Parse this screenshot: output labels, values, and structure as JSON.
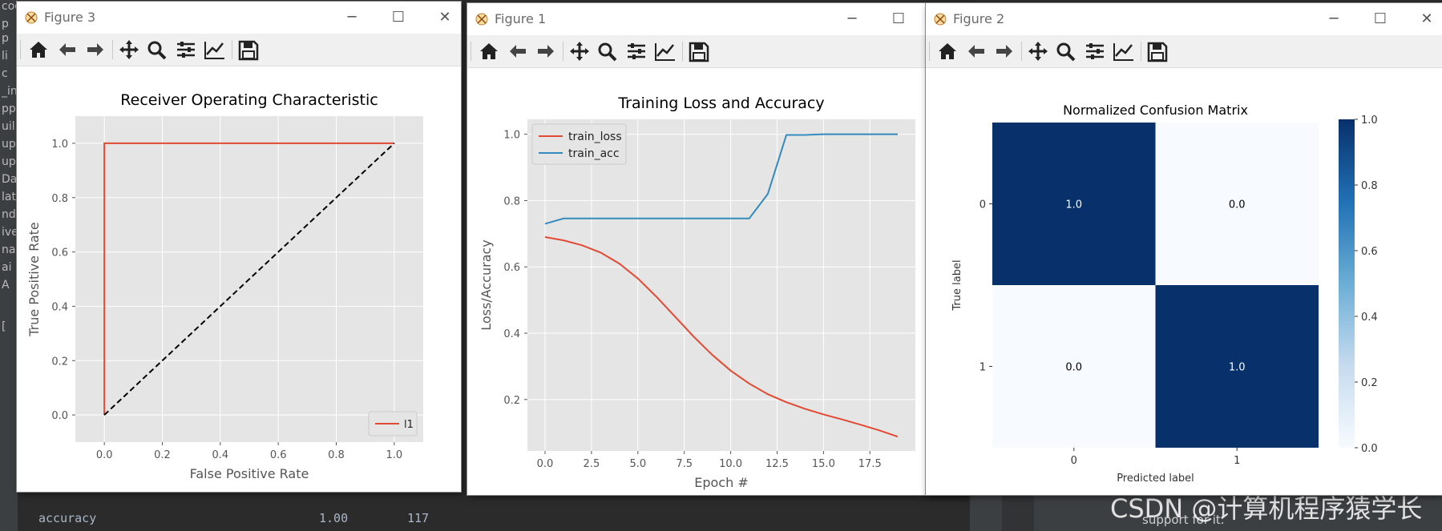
{
  "ide": {
    "left_fragments": [
      "codes",
      "p",
      "p",
      "li",
      "c",
      "_in",
      "pp",
      "uil",
      "up",
      "up",
      "Dat",
      "lata",
      "ndi",
      "ive",
      "nai",
      "ai",
      "A",
      "["
    ],
    "bottom_label": "accuracy",
    "bottom_score": "1.00",
    "bottom_support": "117",
    "support_text": "support for it.",
    "watermark": "CSDN @计算机程序猿学长"
  },
  "windows": {
    "fig3": {
      "title": "Figure 3",
      "controls": {
        "minimize": "─",
        "maximize": "☐",
        "close": "✕"
      },
      "toolbar": [
        "home-icon",
        "back-icon",
        "forward-icon",
        "pan-icon",
        "zoom-icon",
        "configure-subplots-icon",
        "edit-axis-icon",
        "save-icon"
      ]
    },
    "fig1": {
      "title": "Figure 1",
      "controls": {
        "minimize": "─",
        "maximize": "☐"
      },
      "toolbar": [
        "home-icon",
        "back-icon",
        "forward-icon",
        "pan-icon",
        "zoom-icon",
        "configure-subplots-icon",
        "edit-axis-icon",
        "save-icon"
      ]
    },
    "fig2": {
      "title": "Figure 2",
      "controls": {
        "minimize": "─",
        "maximize": "☐",
        "close": "✕"
      },
      "toolbar": [
        "home-icon",
        "back-icon",
        "forward-icon",
        "pan-icon",
        "zoom-icon",
        "configure-subplots-icon",
        "edit-axis-icon",
        "save-icon"
      ]
    }
  },
  "colors": {
    "axes_bg": "#e5e5e5",
    "red": "#e24a33",
    "blue": "#348abd",
    "cm_dark": "#08306b",
    "cm_light": "#f7fbff"
  },
  "chart_data": [
    {
      "id": "roc",
      "type": "line",
      "title": "Receiver Operating Characteristic",
      "xlabel": "False Positive Rate",
      "ylabel": "True Positive Rate",
      "xlim": [
        -0.1,
        1.1
      ],
      "ylim": [
        -0.1,
        1.1
      ],
      "xticks": [
        "0.0",
        "0.2",
        "0.4",
        "0.6",
        "0.8",
        "1.0"
      ],
      "yticks": [
        "0.0",
        "0.2",
        "0.4",
        "0.6",
        "0.8",
        "1.0"
      ],
      "grid": true,
      "legend_position": "lower-right",
      "series": [
        {
          "name": "l1",
          "color": "#e24a33",
          "style": "solid",
          "x": [
            0.0,
            0.0,
            1.0
          ],
          "y": [
            0.0,
            1.0,
            1.0
          ]
        },
        {
          "name": "",
          "color": "#000000",
          "style": "dashed",
          "x": [
            0.0,
            1.0
          ],
          "y": [
            0.0,
            1.0
          ]
        }
      ]
    },
    {
      "id": "training",
      "type": "line",
      "title": "Training Loss and Accuracy",
      "xlabel": "Epoch #",
      "ylabel": "Loss/Accuracy",
      "xlim": [
        -0.95,
        19.95
      ],
      "ylim": [
        0.045,
        1.045
      ],
      "xticks": [
        "0.0",
        "2.5",
        "5.0",
        "7.5",
        "10.0",
        "12.5",
        "15.0",
        "17.5"
      ],
      "yticks": [
        "0.2",
        "0.4",
        "0.6",
        "0.8",
        "1.0"
      ],
      "grid": true,
      "legend_position": "upper-left",
      "x": [
        0,
        1,
        2,
        3,
        4,
        5,
        6,
        7,
        8,
        9,
        10,
        11,
        12,
        13,
        14,
        15,
        16,
        17,
        18,
        19
      ],
      "series": [
        {
          "name": "train_loss",
          "color": "#e24a33",
          "values": [
            0.69,
            0.68,
            0.665,
            0.643,
            0.61,
            0.565,
            0.51,
            0.45,
            0.39,
            0.335,
            0.287,
            0.248,
            0.216,
            0.192,
            0.172,
            0.155,
            0.14,
            0.124,
            0.107,
            0.088
          ]
        },
        {
          "name": "train_acc",
          "color": "#348abd",
          "values": [
            0.73,
            0.746,
            0.746,
            0.746,
            0.746,
            0.746,
            0.746,
            0.746,
            0.746,
            0.746,
            0.746,
            0.746,
            0.82,
            0.998,
            0.998,
            1.0,
            1.0,
            1.0,
            1.0,
            1.0
          ]
        }
      ]
    },
    {
      "id": "confusion",
      "type": "heatmap",
      "title": "Normalized Confusion Matrix",
      "xlabel": "Predicted label",
      "ylabel": "True label",
      "xticklabels": [
        "0",
        "1"
      ],
      "yticklabels": [
        "0",
        "1"
      ],
      "values": [
        [
          1.0,
          0.0
        ],
        [
          0.0,
          1.0
        ]
      ],
      "annotations": [
        [
          "1.0",
          "0.0"
        ],
        [
          "0.0",
          "1.0"
        ]
      ],
      "colorbar_ticks": [
        "0.0",
        "0.2",
        "0.4",
        "0.6",
        "0.8",
        "1.0"
      ],
      "colormap": "Blues"
    }
  ]
}
